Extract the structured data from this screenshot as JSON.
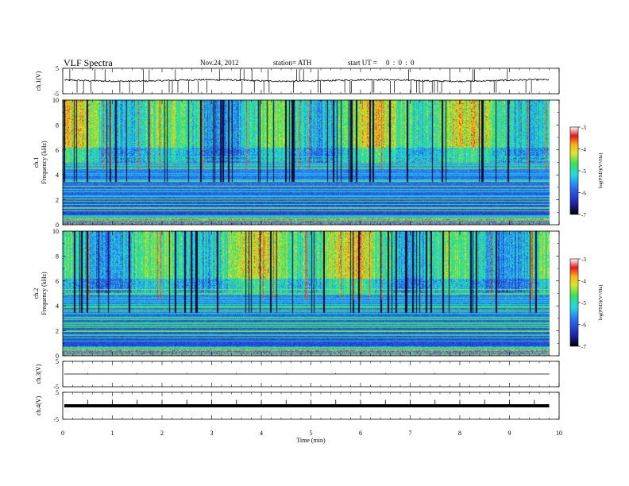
{
  "header": {
    "title": "VLF  Spectra",
    "date": "Nov.24, 2012",
    "station": "station= ATH",
    "start_label": "start  UT  =",
    "start_value": "0  :  0  :  0"
  },
  "chart_data": [
    {
      "type": "line",
      "name": "ch1-waveform",
      "ylabel": "ch.1(V)",
      "yticks": [
        "5",
        "-5"
      ],
      "ylim": [
        -5,
        5
      ],
      "baseline": 0.2,
      "noise": 0.3,
      "spikes_per_min": 6,
      "color": "#000000"
    },
    {
      "type": "heatmap",
      "name": "ch1-spectrogram",
      "ylabel": "ch.1\nFrequency (kHz)",
      "yticks": [
        "0",
        "2",
        "4",
        "6",
        "8",
        "10"
      ],
      "ylim": [
        0,
        10
      ],
      "xlim": [
        0,
        10
      ],
      "data_extent_min": 9.8,
      "colorbar": {
        "label": "log(PSD)(V²/Hz)",
        "ticks": [
          "-3",
          "-4",
          "-5",
          "-6",
          "-7"
        ],
        "range": [
          -7,
          -3
        ]
      }
    },
    {
      "type": "heatmap",
      "name": "ch2-spectrogram",
      "ylabel": "ch.2\nFrequency (kHz)",
      "yticks": [
        "0",
        "2",
        "4",
        "6",
        "8",
        "10"
      ],
      "ylim": [
        0,
        10
      ],
      "xlim": [
        0,
        10
      ],
      "data_extent_min": 9.8,
      "colorbar": {
        "label": "log(PSD)(V²/Hz)",
        "ticks": [
          "-3",
          "-4",
          "-5",
          "-6",
          "-7"
        ],
        "range": [
          -7,
          -3
        ]
      }
    },
    {
      "type": "line",
      "name": "ch3-waveform",
      "ylabel": "ch.3(V)",
      "yticks": [
        "5",
        "-5"
      ],
      "ylim": [
        -5,
        5
      ],
      "baseline": 0.0,
      "color": "#000000"
    },
    {
      "type": "line",
      "name": "ch4-waveform",
      "ylabel": "ch.4(V)",
      "yticks": [
        "5",
        "-5"
      ],
      "ylim": [
        -5,
        5
      ],
      "baseline": 0.0,
      "noise": 0.35,
      "color": "#000000"
    }
  ],
  "xaxis": {
    "label": "Time  (min)",
    "ticks": [
      "0",
      "1",
      "2",
      "3",
      "4",
      "5",
      "6",
      "7",
      "8",
      "9",
      "10"
    ],
    "range": [
      0,
      10
    ]
  }
}
